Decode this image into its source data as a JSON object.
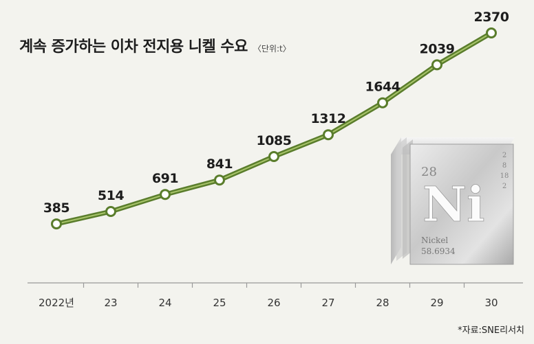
{
  "title": "계속 증가하는 이차 전지용 니켈 수요",
  "unit": "〈단위:t〉",
  "source": "*자료:SNE리서치",
  "element_tile": {
    "atomic_number": "28",
    "symbol": "Ni",
    "name": "Nickel",
    "mass": "58.6934",
    "shells": [
      "2",
      "8",
      "18",
      "2"
    ]
  },
  "colors": {
    "background": "#f3f3ee",
    "line": "#5a7d2c",
    "line_highlight": "#a9c56b",
    "marker_fill": "#ffffff"
  },
  "chart_data": {
    "type": "line",
    "title": "계속 증가하는 이차 전지용 니켈 수요",
    "x": [
      "2022년",
      "23",
      "24",
      "25",
      "26",
      "27",
      "28",
      "29",
      "30"
    ],
    "series": [
      {
        "values": [
          385,
          514,
          691,
          841,
          1085,
          1312,
          1644,
          2039,
          2370
        ]
      }
    ],
    "data_labels": [
      "385",
      "514",
      "691",
      "841",
      "1085",
      "1312",
      "1644",
      "2039",
      "2370"
    ],
    "ylim": [
      0,
      2370
    ],
    "grid": false,
    "legend": "none"
  }
}
